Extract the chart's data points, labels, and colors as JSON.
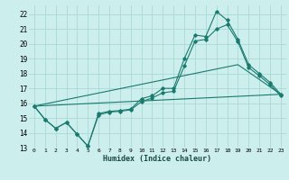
{
  "xlabel": "Humidex (Indice chaleur)",
  "bg_color": "#cceeed",
  "grid_color": "#aad8d5",
  "line_color": "#1a7a6e",
  "xlim": [
    -0.5,
    23.5
  ],
  "ylim": [
    13,
    22.6
  ],
  "xticks": [
    0,
    1,
    2,
    3,
    4,
    5,
    6,
    7,
    8,
    9,
    10,
    11,
    12,
    13,
    14,
    15,
    16,
    17,
    18,
    19,
    20,
    21,
    22,
    23
  ],
  "yticks": [
    13,
    14,
    15,
    16,
    17,
    18,
    19,
    20,
    21,
    22
  ],
  "series1_x": [
    0,
    1,
    2,
    3,
    4,
    5,
    6,
    7,
    8,
    9,
    10,
    11,
    12,
    13,
    14,
    15,
    16,
    17,
    18,
    19,
    20,
    21,
    22,
    23
  ],
  "series1_y": [
    15.8,
    14.9,
    14.3,
    14.7,
    13.9,
    13.1,
    15.3,
    15.45,
    15.5,
    15.6,
    16.3,
    16.5,
    17.0,
    17.0,
    19.0,
    20.6,
    20.5,
    22.2,
    21.6,
    20.3,
    18.6,
    18.0,
    17.4,
    16.6
  ],
  "series2_x": [
    0,
    1,
    2,
    3,
    4,
    5,
    6,
    7,
    8,
    9,
    10,
    11,
    12,
    13,
    14,
    15,
    16,
    17,
    18,
    19,
    20,
    21,
    22,
    23
  ],
  "series2_y": [
    15.8,
    14.9,
    14.3,
    14.7,
    13.9,
    13.1,
    15.2,
    15.4,
    15.45,
    15.55,
    16.1,
    16.35,
    16.7,
    16.8,
    18.5,
    20.2,
    20.3,
    21.0,
    21.3,
    20.15,
    18.4,
    17.85,
    17.25,
    16.5
  ],
  "series3_x": [
    0,
    23
  ],
  "series3_y": [
    15.8,
    16.6
  ],
  "series4_x": [
    0,
    19,
    23
  ],
  "series4_y": [
    15.8,
    18.6,
    16.6
  ]
}
